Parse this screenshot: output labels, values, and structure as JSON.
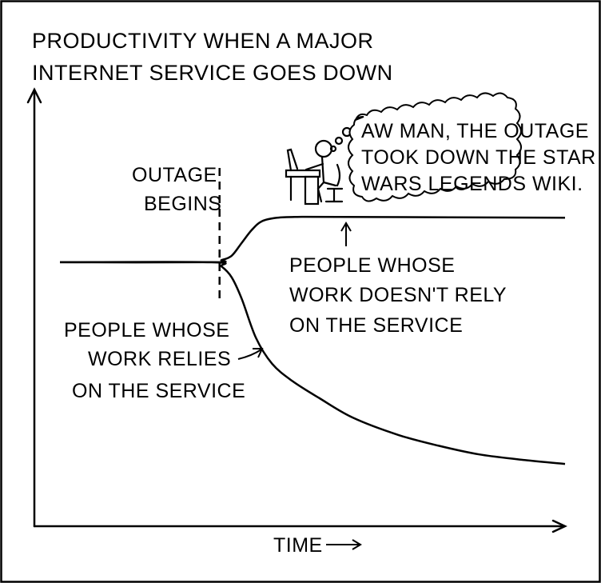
{
  "chart_data": {
    "type": "line",
    "title": [
      "PRODUCTIVITY WHEN A MAJOR",
      "INTERNET SERVICE GOES DOWN"
    ],
    "xlabel": "TIME",
    "ylabel": "",
    "xlim": [
      0,
      100
    ],
    "ylim": [
      0,
      100
    ],
    "grid": false,
    "legend": "none",
    "outage_x": 31.6,
    "series": [
      {
        "label": [
          "PEOPLE WHOSE",
          "WORK DOESN'T RELY",
          "ON THE SERVICE"
        ],
        "x": [
          0,
          30,
          32,
          34,
          36,
          38,
          40,
          43,
          47,
          55,
          100
        ],
        "y": [
          61.5,
          61.5,
          62,
          63,
          66,
          69,
          71,
          71.8,
          72,
          72,
          71.8
        ]
      },
      {
        "label": [
          "PEOPLE WHOSE",
          "WORK RELIES",
          "ON THE SERVICE"
        ],
        "x": [
          0,
          30,
          32,
          34,
          36,
          38.8,
          42,
          46,
          51.4,
          58,
          67,
          75,
          83,
          92,
          100
        ],
        "y": [
          61.5,
          61.5,
          60.5,
          58,
          53,
          44,
          38,
          34,
          30,
          25.5,
          21.5,
          19,
          17,
          15.7,
          14.8
        ]
      }
    ],
    "annotations": {
      "outage": [
        "OUTAGE",
        "BEGINS"
      ],
      "thought": [
        "AW MAN, THE OUTAGE",
        "TOOK DOWN THE STAR",
        "WARS LEGENDS WIKI."
      ]
    }
  }
}
